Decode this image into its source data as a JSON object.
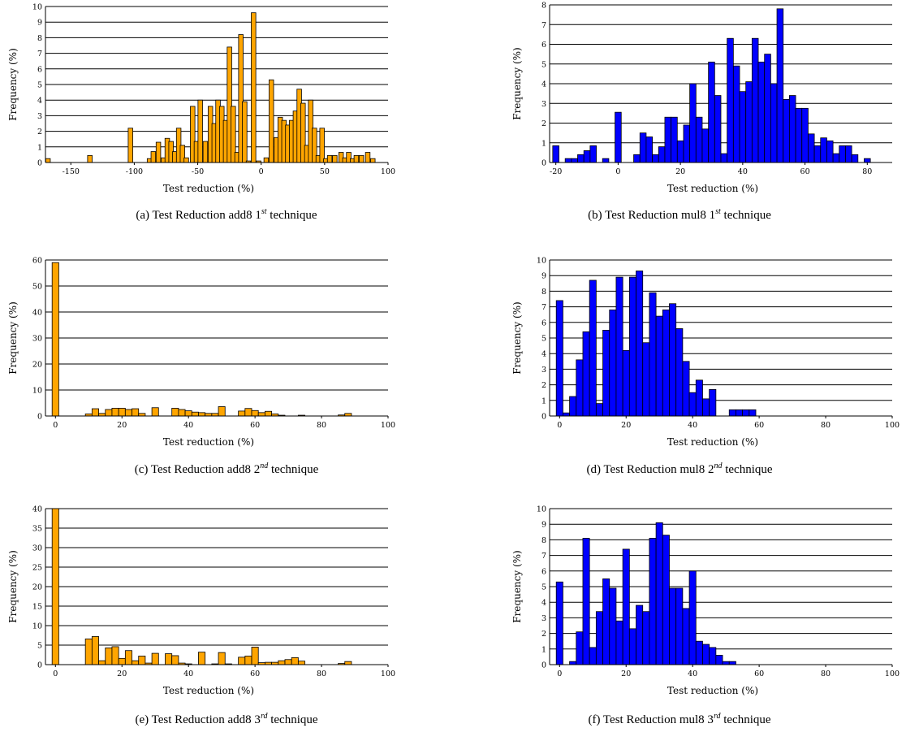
{
  "chart_data": [
    {
      "id": "a",
      "type": "bar",
      "color": "#FFA500",
      "caption": {
        "prefix": "(a) Test Reduction add8 1",
        "sup": "st",
        "suffix": " technique"
      },
      "xlabel": "Test reduction (%)",
      "ylabel": "Frequency (%)",
      "xlim": [
        -170,
        100
      ],
      "ylim": [
        0,
        10
      ],
      "xticks": [
        -150,
        -100,
        -50,
        0,
        50,
        100
      ],
      "yticks": [
        0,
        1,
        2,
        3,
        4,
        5,
        6,
        7,
        8,
        9,
        10
      ],
      "grid": "horizontal",
      "bin_width": 3.6,
      "x": [
        -168,
        -135,
        -103,
        -88,
        -85,
        -81,
        -77,
        -74,
        -71,
        -68,
        -65,
        -62,
        -59,
        -54,
        -51,
        -48,
        -44,
        -40,
        -37,
        -34,
        -31,
        -28,
        -25,
        -22,
        -19,
        -16,
        -13,
        -10,
        -6,
        -2,
        4,
        8,
        12,
        15,
        18,
        21,
        24,
        27,
        30,
        33,
        36,
        39,
        42,
        45,
        48,
        51,
        54,
        58,
        63,
        66,
        69,
        72,
        75,
        79,
        84,
        88
      ],
      "y": [
        0.25,
        0.45,
        2.2,
        0.25,
        0.7,
        1.3,
        0.3,
        1.55,
        1.35,
        0.7,
        2.2,
        1.1,
        0.3,
        3.6,
        1.35,
        4,
        1.35,
        3.6,
        2.5,
        4,
        3.6,
        2.7,
        7.4,
        3.6,
        0.65,
        8.2,
        3.9,
        0.1,
        9.6,
        0.1,
        0.3,
        5.3,
        1.6,
        2.9,
        2.7,
        2.4,
        2.7,
        3.3,
        4.7,
        3.8,
        1.1,
        4,
        2.2,
        0.45,
        2.2,
        0.25,
        0.45,
        0.45,
        0.65,
        0.3,
        0.65,
        0.25,
        0.45,
        0.45,
        0.65,
        0.25
      ]
    },
    {
      "id": "b",
      "type": "bar",
      "color": "#0000FF",
      "caption": {
        "prefix": "(b) Test Reduction mul8 1",
        "sup": "st",
        "suffix": " technique"
      },
      "xlabel": "Test reduction (%)",
      "ylabel": "Frequency (%)",
      "xlim": [
        -22,
        88
      ],
      "ylim": [
        0,
        8
      ],
      "xticks": [
        -20,
        0,
        20,
        40,
        60,
        80
      ],
      "yticks": [
        0,
        1,
        2,
        3,
        4,
        5,
        6,
        7,
        8
      ],
      "grid": "horizontal",
      "bin_width": 2,
      "x": [
        -20,
        -16,
        -14,
        -12,
        -10,
        -8,
        -4,
        0,
        6,
        8,
        10,
        12,
        14,
        16,
        18,
        20,
        22,
        24,
        26,
        28,
        30,
        32,
        34,
        36,
        38,
        40,
        42,
        44,
        46,
        48,
        50,
        52,
        54,
        56,
        58,
        60,
        62,
        64,
        66,
        68,
        70,
        72,
        74,
        76,
        80
      ],
      "y": [
        0.85,
        0.2,
        0.2,
        0.4,
        0.6,
        0.85,
        0.2,
        2.55,
        0.4,
        1.5,
        1.3,
        0.4,
        0.8,
        2.3,
        2.3,
        1.1,
        1.9,
        4,
        2.3,
        1.7,
        5.1,
        3.4,
        0.45,
        6.3,
        4.9,
        3.6,
        4.1,
        6.3,
        5.1,
        5.5,
        4,
        7.8,
        3.2,
        3.4,
        2.75,
        2.75,
        1.45,
        0.85,
        1.25,
        1.1,
        0.45,
        0.85,
        0.85,
        0.4,
        0.2
      ]
    },
    {
      "id": "c",
      "type": "bar",
      "color": "#FFA500",
      "caption": {
        "prefix": "(c) Test Reduction add8 2",
        "sup": "nd",
        "suffix": " technique"
      },
      "xlabel": "Test reduction (%)",
      "ylabel": "Frequency (%)",
      "xlim": [
        -3,
        100
      ],
      "ylim": [
        0,
        60
      ],
      "xticks": [
        0,
        20,
        40,
        60,
        80,
        100
      ],
      "yticks": [
        0,
        10,
        20,
        30,
        40,
        50,
        60
      ],
      "grid": "horizontal",
      "bin_width": 2,
      "x": [
        0,
        10,
        12,
        14,
        16,
        18,
        20,
        22,
        24,
        26,
        30,
        36,
        38,
        40,
        42,
        44,
        46,
        48,
        50,
        56,
        58,
        60,
        62,
        64,
        66,
        68,
        74,
        86,
        88
      ],
      "y": [
        59,
        0.8,
        2.8,
        1,
        2.5,
        3,
        3,
        2.5,
        2.8,
        1,
        3.2,
        3,
        2.5,
        2,
        1.5,
        1.3,
        1,
        1,
        3.6,
        1.9,
        2.9,
        2.1,
        1.3,
        1.8,
        0.8,
        0.3,
        0.3,
        0.4,
        1
      ]
    },
    {
      "id": "d",
      "type": "bar",
      "color": "#0000FF",
      "caption": {
        "prefix": "(d) Test Reduction mul8 2",
        "sup": "nd",
        "suffix": " technique"
      },
      "xlabel": "Test reduction (%)",
      "ylabel": "Frequency (%)",
      "xlim": [
        -3,
        100
      ],
      "ylim": [
        0,
        10
      ],
      "xticks": [
        0,
        20,
        40,
        60,
        80,
        100
      ],
      "yticks": [
        0,
        1,
        2,
        3,
        4,
        5,
        6,
        7,
        8,
        9,
        10
      ],
      "grid": "horizontal",
      "bin_width": 2,
      "x": [
        0,
        2,
        4,
        6,
        8,
        10,
        12,
        14,
        16,
        18,
        20,
        22,
        24,
        26,
        28,
        30,
        32,
        34,
        36,
        38,
        40,
        42,
        44,
        46,
        48,
        50,
        52,
        54,
        56,
        58,
        60
      ],
      "y": [
        7.4,
        0.2,
        1.25,
        3.6,
        5.4,
        8.7,
        0.8,
        5.5,
        6.8,
        8.9,
        4.2,
        8.9,
        9.3,
        4.7,
        7.9,
        6.4,
        6.8,
        7.2,
        5.6,
        3.5,
        1.5,
        2.3,
        1.1,
        1.7,
        0,
        0,
        0.4,
        0.4,
        0.4,
        0.4,
        0
      ]
    },
    {
      "id": "e",
      "type": "bar",
      "color": "#FFA500",
      "caption": {
        "prefix": "(e) Test Reduction add8 3",
        "sup": "rd",
        "suffix": " technique"
      },
      "xlabel": "Test reduction (%)",
      "ylabel": "Frequency (%)",
      "xlim": [
        -3,
        100
      ],
      "ylim": [
        0,
        40
      ],
      "xticks": [
        0,
        20,
        40,
        60,
        80,
        100
      ],
      "yticks": [
        0,
        5,
        10,
        15,
        20,
        25,
        30,
        35,
        40
      ],
      "grid": "horizontal",
      "bin_width": 2,
      "x": [
        0,
        10,
        12,
        14,
        16,
        18,
        20,
        22,
        24,
        26,
        28,
        30,
        34,
        36,
        38,
        40,
        44,
        48,
        50,
        52,
        56,
        58,
        60,
        62,
        64,
        66,
        68,
        70,
        72,
        74,
        86,
        88
      ],
      "y": [
        40,
        6.6,
        7.2,
        1,
        4.3,
        4.6,
        1.6,
        3.6,
        1,
        2.2,
        0.4,
        2.9,
        2.8,
        2.3,
        0.4,
        0.2,
        3.2,
        0.2,
        3.1,
        0.2,
        1.9,
        2.2,
        4.5,
        0.5,
        0.6,
        0.6,
        1,
        1.3,
        1.8,
        0.9,
        0.3,
        0.8
      ]
    },
    {
      "id": "f",
      "type": "bar",
      "color": "#0000FF",
      "caption": {
        "prefix": "(f) Test Reduction mul8 3",
        "sup": "rd",
        "suffix": " technique"
      },
      "xlabel": "Test reduction (%)",
      "ylabel": "Frequency (%)",
      "xlim": [
        -3,
        100
      ],
      "ylim": [
        0,
        10
      ],
      "xticks": [
        0,
        20,
        40,
        60,
        80,
        100
      ],
      "yticks": [
        0,
        1,
        2,
        3,
        4,
        5,
        6,
        7,
        8,
        9,
        10
      ],
      "grid": "horizontal",
      "bin_width": 2,
      "x": [
        0,
        4,
        6,
        8,
        10,
        12,
        14,
        16,
        18,
        20,
        22,
        24,
        26,
        28,
        30,
        32,
        34,
        36,
        38,
        40,
        42,
        44,
        46,
        48,
        50,
        52,
        54,
        56,
        58,
        60,
        62,
        64
      ],
      "y": [
        5.3,
        0.2,
        2.1,
        8.1,
        1.1,
        3.4,
        5.5,
        4.9,
        2.8,
        7.4,
        2.3,
        3.8,
        3.4,
        8.1,
        9.1,
        8.3,
        4.9,
        4.9,
        3.6,
        6,
        1.5,
        1.3,
        1.1,
        0.6,
        0.2,
        0.2,
        0,
        0,
        0,
        0,
        0,
        0
      ]
    }
  ]
}
